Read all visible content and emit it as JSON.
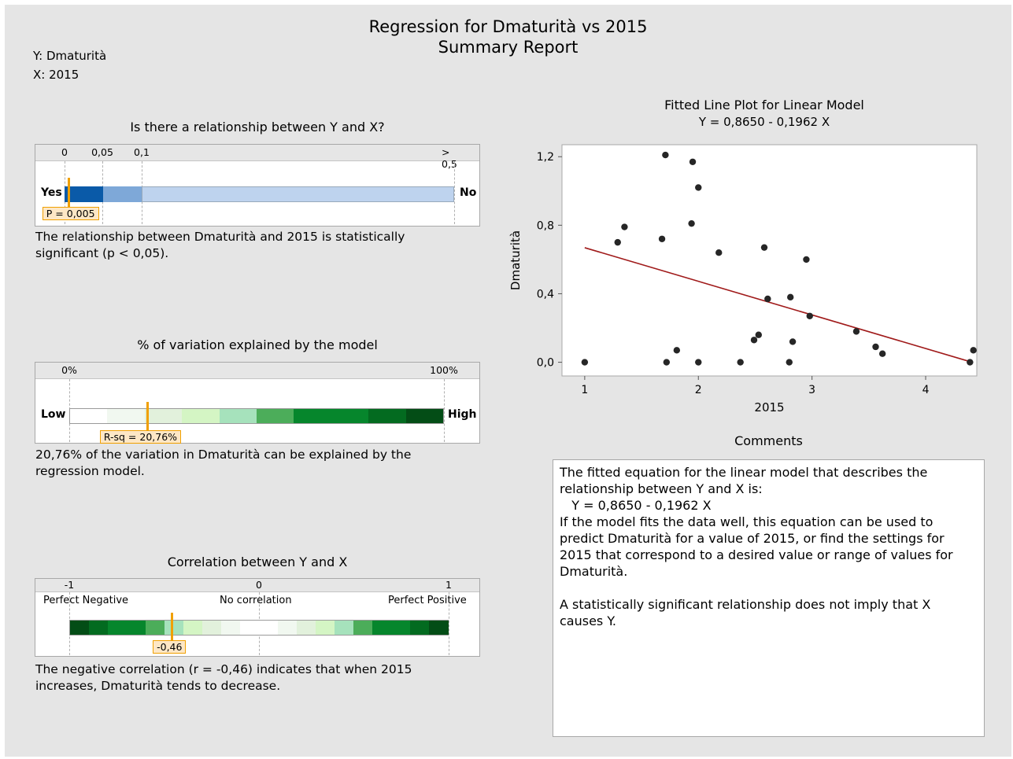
{
  "report": {
    "title": "Regression for Dmaturità vs 2015",
    "subtitle": "Summary Report",
    "y_label": "Y: Dmaturità",
    "x_label": "X: 2015"
  },
  "relationship": {
    "title": "Is there a relationship between Y and X?",
    "ticks": [
      "0",
      "0,05",
      "0,1",
      "> 0,5"
    ],
    "left_label": "Yes",
    "right_label": "No",
    "p_value": 0.005,
    "marker_label": "P = 0,005",
    "description": "The relationship between Dmaturità and 2015 is statistically significant (p < 0,05).",
    "colors": {
      "strong": "#0a5aa8",
      "medium": "#7ea8d8",
      "light": "#bed3ee"
    }
  },
  "rsq": {
    "title": "% of variation explained by the model",
    "ticks": [
      "0%",
      "100%"
    ],
    "left_label": "Low",
    "right_label": "High",
    "value_percent": 20.76,
    "marker_label": "R-sq = 20,76%",
    "description": "20,76% of the variation in Dmaturità can be explained by the regression model.",
    "colors": [
      "#ffffff",
      "#f1f8f0",
      "#e2f1dc",
      "#d4f5c4",
      "#a6e2bc",
      "#4cad5a",
      "#06862c",
      "#06862c",
      "#036b20",
      "#034d16"
    ]
  },
  "correlation": {
    "title": "Correlation between Y and X",
    "ticks": [
      "-1",
      "0",
      "1"
    ],
    "labels": [
      "Perfect Negative",
      "No correlation",
      "Perfect Positive"
    ],
    "value": -0.46,
    "marker_label": "-0,46",
    "description": "The negative correlation (r = -0,46) indicates that when 2015 increases, Dmaturità tends to decrease.",
    "colors": [
      "#034d16",
      "#036b20",
      "#06862c",
      "#06862c",
      "#4cad5a",
      "#a6e2bc",
      "#d4f5c4",
      "#e2f1dc",
      "#f1f8f0",
      "#ffffff",
      "#ffffff",
      "#f1f8f0",
      "#e2f1dc",
      "#d4f5c4",
      "#a6e2bc",
      "#4cad5a",
      "#06862c",
      "#06862c",
      "#036b20",
      "#034d16"
    ]
  },
  "chart_data": {
    "type": "scatter",
    "title": "Fitted Line Plot for Linear Model",
    "subtitle": "Y = 0,8650 - 0,1962 X",
    "xlabel": "2015",
    "ylabel": "Dmaturità",
    "xlim": [
      0.8,
      4.45
    ],
    "ylim": [
      -0.08,
      1.27
    ],
    "xticks": [
      1,
      2,
      3,
      4
    ],
    "xtick_labels": [
      "1",
      "2",
      "3",
      "4"
    ],
    "yticks": [
      0.0,
      0.4,
      0.8,
      1.2
    ],
    "ytick_labels": [
      "0,0",
      "0,4",
      "0,8",
      "1,2"
    ],
    "fit": {
      "intercept": 0.865,
      "slope": -0.1962,
      "x_range": [
        1.0,
        4.4
      ],
      "color": "#a01a1a"
    },
    "points": [
      {
        "x": 1.0,
        "y": 0.0
      },
      {
        "x": 1.29,
        "y": 0.7
      },
      {
        "x": 1.35,
        "y": 0.79
      },
      {
        "x": 1.68,
        "y": 0.72
      },
      {
        "x": 1.71,
        "y": 1.21
      },
      {
        "x": 1.72,
        "y": 0.0
      },
      {
        "x": 1.81,
        "y": 0.07
      },
      {
        "x": 1.94,
        "y": 0.81
      },
      {
        "x": 1.95,
        "y": 1.17
      },
      {
        "x": 2.0,
        "y": 1.02
      },
      {
        "x": 2.0,
        "y": 0.0
      },
      {
        "x": 2.18,
        "y": 0.64
      },
      {
        "x": 2.37,
        "y": 0.0
      },
      {
        "x": 2.49,
        "y": 0.13
      },
      {
        "x": 2.53,
        "y": 0.16
      },
      {
        "x": 2.58,
        "y": 0.67
      },
      {
        "x": 2.61,
        "y": 0.37
      },
      {
        "x": 2.8,
        "y": 0.0
      },
      {
        "x": 2.81,
        "y": 0.38
      },
      {
        "x": 2.83,
        "y": 0.12
      },
      {
        "x": 2.95,
        "y": 0.6
      },
      {
        "x": 2.98,
        "y": 0.27
      },
      {
        "x": 3.39,
        "y": 0.18
      },
      {
        "x": 3.56,
        "y": 0.09
      },
      {
        "x": 3.62,
        "y": 0.05
      },
      {
        "x": 4.39,
        "y": 0.0
      },
      {
        "x": 4.42,
        "y": 0.07
      }
    ],
    "point_color": "#262626"
  },
  "comments": {
    "title": "Comments",
    "text": "The fitted equation for the linear model that describes the relationship between Y and X is:\n   Y = 0,8650 - 0,1962 X\nIf the model fits the data well, this equation can be used to predict Dmaturità for a value of 2015, or find the settings for 2015 that correspond to a desired value or range of values for Dmaturità.\n\nA statistically significant relationship does not imply that X causes Y."
  }
}
